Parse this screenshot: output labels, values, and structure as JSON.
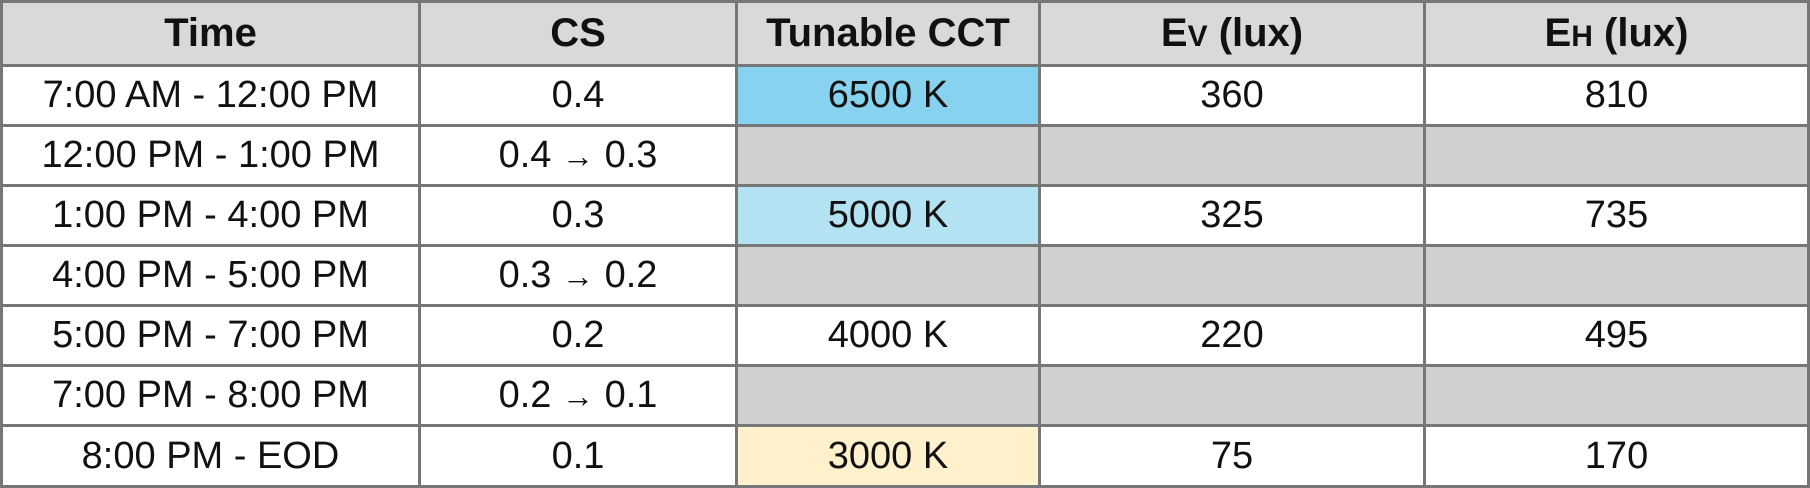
{
  "chart_data": {
    "type": "table",
    "header": {
      "time": "Time",
      "cs": "CS",
      "cct": "Tunable CCT",
      "ev": {
        "letter": "E",
        "sub": "V",
        "unit": " (lux)"
      },
      "eh": {
        "letter": "E",
        "sub": "H",
        "unit": " (lux)"
      }
    },
    "rows": [
      {
        "time": "7:00 AM - 12:00 PM",
        "cs": "0.4",
        "cct": "6500 K",
        "ev": "360",
        "eh": "810",
        "cct_color": "#87d3ef"
      },
      {
        "time": "12:00 PM - 1:00 PM",
        "cs_from": "0.4",
        "cs_arrow": "→",
        "cs_to": "0.3",
        "transition": true
      },
      {
        "time": "1:00 PM - 4:00 PM",
        "cs": "0.3",
        "cct": "5000 K",
        "ev": "325",
        "eh": "735",
        "cct_color": "#b3e3f2"
      },
      {
        "time": "4:00 PM - 5:00 PM",
        "cs_from": "0.3",
        "cs_arrow": "→",
        "cs_to": "0.2",
        "transition": true
      },
      {
        "time": "5:00 PM - 7:00 PM",
        "cs": "0.2",
        "cct": "4000 K",
        "ev": "220",
        "eh": "495",
        "cct_color": "#ffffff"
      },
      {
        "time": "7:00 PM - 8:00 PM",
        "cs_from": "0.2",
        "cs_arrow": "→",
        "cs_to": "0.1",
        "transition": true
      },
      {
        "time": "8:00 PM - EOD",
        "cs": "0.1",
        "cct": "3000 K",
        "ev": "75",
        "eh": "170",
        "cct_color": "#fff1cc"
      }
    ]
  },
  "colors": {
    "header_bg": "#d9d9d9",
    "empty_cell_bg": "#d0cfd1",
    "border": "#777777"
  }
}
